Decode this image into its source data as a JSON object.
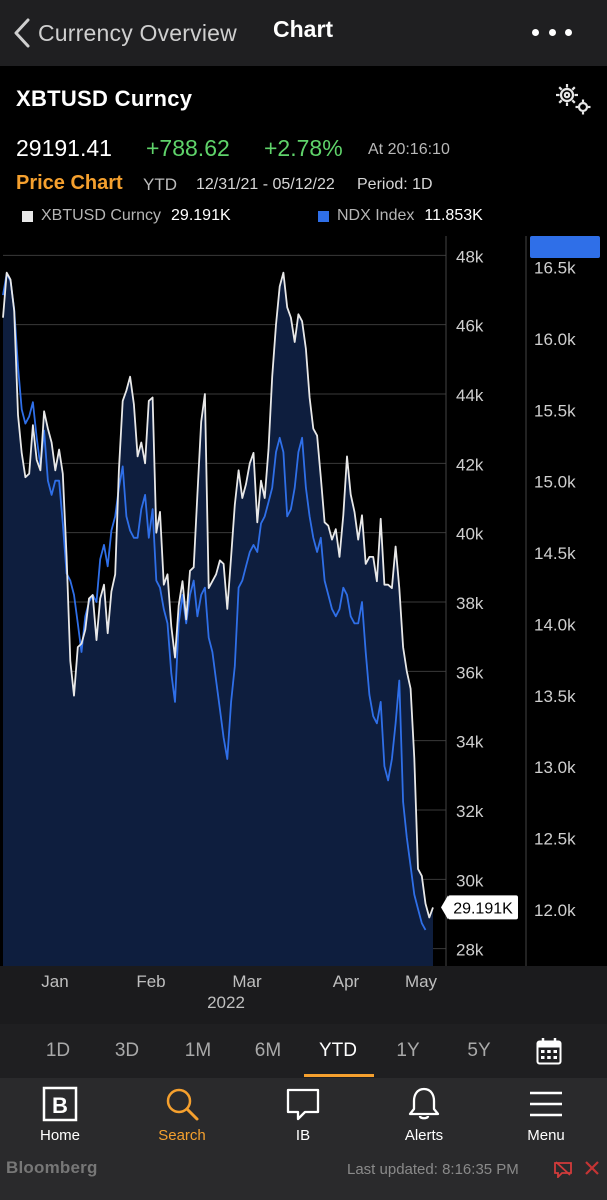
{
  "nav": {
    "back_label": "Currency Overview",
    "title": "Chart"
  },
  "header": {
    "symbol": "XBTUSD Curncy",
    "last": "29191.41",
    "change": "+788.62",
    "change_pct": "+2.78%",
    "time": "At 20:16:10"
  },
  "chart_info": {
    "title": "Price Chart",
    "range_label": "YTD",
    "dates": "12/31/21 - 05/12/22",
    "period": "Period: 1D"
  },
  "legend": [
    {
      "name": "XBTUSD Curncy",
      "value": "29.191K",
      "color": "#e8e8e8"
    },
    {
      "name": "NDX Index",
      "value": "11.853K",
      "color": "#2f6fe8"
    }
  ],
  "chart_data": {
    "type": "line",
    "x_ticks": [
      "Jan",
      "Feb",
      "Mar",
      "Apr",
      "May"
    ],
    "x_year": "2022",
    "y_left_ticks": [
      "48k",
      "46k",
      "44k",
      "42k",
      "40k",
      "38k",
      "36k",
      "34k",
      "32k",
      "30k",
      "28k"
    ],
    "y_right_ticks": [
      "16.5k",
      "16.0k",
      "15.5k",
      "15.0k",
      "14.5k",
      "14.0k",
      "13.5k",
      "13.0k",
      "12.5k",
      "12.0k"
    ],
    "y_left_range": [
      27500,
      48500
    ],
    "y_right_range": [
      11600,
      16700
    ],
    "series": [
      {
        "name": "XBTUSD Curncy",
        "axis": "left",
        "color": "#e8e8e8",
        "last_label": "29.191K",
        "values": [
          46200,
          47500,
          47300,
          46400,
          43400,
          42300,
          41600,
          41700,
          43100,
          42100,
          41800,
          43500,
          43000,
          42600,
          41800,
          42400,
          41700,
          39300,
          36300,
          35300,
          36700,
          36800,
          37200,
          38100,
          38200,
          36900,
          38100,
          38500,
          37100,
          38300,
          38800,
          41800,
          43800,
          44100,
          44500,
          43700,
          42200,
          42600,
          42000,
          43800,
          43900,
          40000,
          40600,
          38500,
          38800,
          37300,
          36400,
          37900,
          38600,
          37500,
          38900,
          39000,
          41100,
          43200,
          44000,
          38400,
          38600,
          38800,
          39200,
          39100,
          37800,
          39300,
          40800,
          41800,
          41000,
          41400,
          42000,
          42300,
          40300,
          41500,
          41000,
          42400,
          44500,
          46000,
          47100,
          47500,
          46500,
          46200,
          45500,
          46300,
          46100,
          45300,
          43900,
          43000,
          42800,
          41600,
          40300,
          40200,
          39800,
          40100,
          39300,
          40500,
          42200,
          41100,
          40600,
          39800,
          40500,
          39100,
          39300,
          39300,
          38600,
          40400,
          38500,
          38500,
          38400,
          39600,
          38400,
          36700,
          36000,
          35500,
          33500,
          30300,
          30100,
          29300,
          28900,
          29191
        ]
      },
      {
        "name": "NDX Index",
        "axis": "right",
        "color": "#2f6fe8",
        "last_label": "11.853K",
        "values": [
          16300,
          16450,
          16400,
          16200,
          15800,
          15500,
          15400,
          15450,
          15550,
          15300,
          15100,
          15350,
          15000,
          14900,
          15000,
          15000,
          14700,
          14350,
          14300,
          14200,
          14000,
          13800,
          14050,
          14150,
          14200,
          14150,
          14450,
          14550,
          14400,
          14650,
          14750,
          14950,
          15100,
          14750,
          14650,
          14600,
          14600,
          14800,
          14900,
          14600,
          14800,
          14300,
          14250,
          14100,
          14000,
          13650,
          13450,
          14000,
          14200,
          14000,
          14200,
          14300,
          14050,
          14200,
          14250,
          13900,
          13800,
          13600,
          13400,
          13200,
          13050,
          13450,
          13700,
          14250,
          14300,
          14400,
          14500,
          14550,
          14500,
          14700,
          14750,
          14850,
          14950,
          15200,
          15300,
          15200,
          14750,
          14800,
          14950,
          15200,
          15300,
          14950,
          14750,
          14600,
          14500,
          14600,
          14300,
          14200,
          14100,
          14050,
          14100,
          14250,
          14200,
          14050,
          14000,
          14000,
          14150,
          13800,
          13500,
          13350,
          13300,
          13450,
          13000,
          12900,
          13050,
          13300,
          13600,
          12750,
          12500,
          12300,
          12100,
          12000,
          11900,
          11853
        ]
      }
    ]
  },
  "periods": [
    "1D",
    "3D",
    "1M",
    "6M",
    "YTD",
    "1Y",
    "5Y"
  ],
  "active_period": "YTD",
  "tabs": [
    {
      "label": "Home",
      "icon": "bloomberg-b-icon"
    },
    {
      "label": "Search",
      "icon": "search-icon"
    },
    {
      "label": "IB",
      "icon": "chat-bubble-icon"
    },
    {
      "label": "Alerts",
      "icon": "bell-icon"
    },
    {
      "label": "Menu",
      "icon": "hamburger-icon"
    }
  ],
  "footer": {
    "brand": "Bloomberg",
    "updated": "Last updated: 8:16:35 PM"
  },
  "colors": {
    "accent": "#f5a02e",
    "positive": "#5fd36a",
    "ndx": "#2f6fe8",
    "area": "#0e1e3e"
  }
}
